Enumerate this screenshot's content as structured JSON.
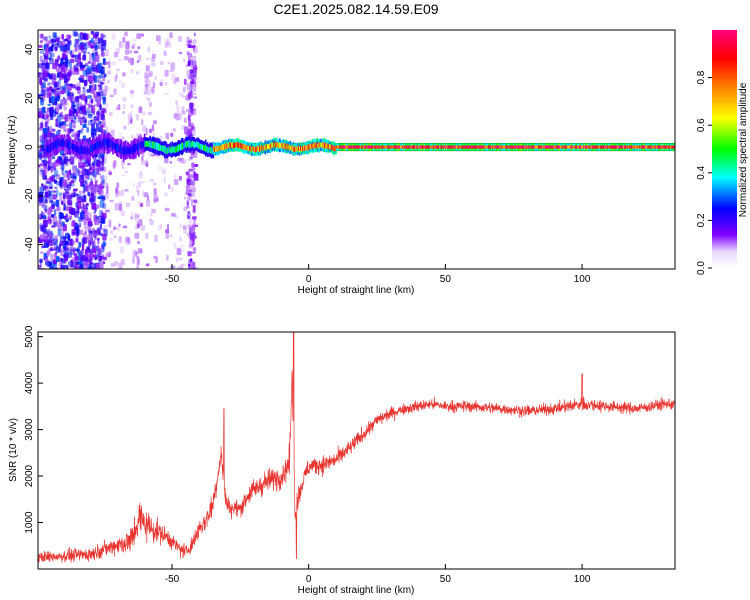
{
  "figure": {
    "title": "C2E1.2025.082.14.59.E09"
  },
  "chart_data": [
    {
      "type": "heatmap",
      "xlabel": "Height of straight line (km)",
      "ylabel": "Frequency (Hz)",
      "xlim": [
        -99,
        134
      ],
      "ylim": [
        -50,
        48
      ],
      "x_ticks": [
        -50,
        0,
        50,
        100
      ],
      "y_ticks": [
        -40,
        -20,
        0,
        20,
        40
      ],
      "grid": false,
      "colorbar": {
        "label": "Normalized spectral amplitude",
        "range": [
          0,
          1
        ],
        "ticks": [
          "0.0",
          "0.2",
          "0.4",
          "0.6",
          "0.8"
        ],
        "colormap": [
          "#ffffff",
          "#7f00ff",
          "#0000ff",
          "#00ffff",
          "#00ff00",
          "#ffff00",
          "#ff8000",
          "#ff0000",
          "#ff0080"
        ]
      },
      "band": {
        "center_hz": 0,
        "half_width_hz": 1.5,
        "segments": [
          {
            "x": [
              -96,
              -60
            ],
            "amplitude": 0.25,
            "wiggle_hz": 2
          },
          {
            "x": [
              -60,
              -35
            ],
            "amplitude": 0.45,
            "wiggle_hz": 1.5
          },
          {
            "x": [
              -35,
              10
            ],
            "amplitude": 0.8,
            "wiggle_hz": 1
          },
          {
            "x": [
              10,
              134
            ],
            "amplitude": 0.98,
            "wiggle_hz": 0
          }
        ],
        "outline_color": "#006400"
      },
      "scatter_regions": [
        {
          "x": [
            -99,
            -75
          ],
          "y": [
            -50,
            48
          ],
          "amplitude": 0.2,
          "density": "high"
        },
        {
          "x": [
            -75,
            -45
          ],
          "y": [
            -50,
            48
          ],
          "amplitude": 0.06,
          "density": "low"
        },
        {
          "x": [
            -45,
            -42
          ],
          "y": [
            -50,
            48
          ],
          "amplitude": 0.12,
          "density": "medium"
        }
      ]
    },
    {
      "type": "line",
      "xlabel": "Height of straight line (km)",
      "ylabel": "SNR (10 * v/v)",
      "xlim": [
        -99,
        134
      ],
      "ylim": [
        0,
        5100
      ],
      "x_ticks": [
        -50,
        0,
        50,
        100
      ],
      "y_ticks": [
        1000,
        2000,
        3000,
        4000,
        5000
      ],
      "grid": false,
      "series": [
        {
          "color": "#e8332e",
          "x": [
            -99,
            -90,
            -80,
            -75,
            -70,
            -65,
            -62,
            -58,
            -52,
            -48,
            -45,
            -42,
            -40,
            -38,
            -35,
            -32,
            -31,
            -30,
            -28,
            -25,
            -22,
            -20,
            -15,
            -10,
            -7,
            -6,
            -5,
            -4,
            -2,
            0,
            5,
            10,
            15,
            20,
            25,
            30,
            35,
            40,
            45,
            50,
            60,
            70,
            80,
            90,
            100,
            110,
            120,
            130,
            134
          ],
          "values": [
            250,
            280,
            320,
            420,
            520,
            600,
            1100,
            900,
            700,
            480,
            350,
            600,
            900,
            1000,
            1400,
            2500,
            1800,
            1400,
            1300,
            1300,
            1600,
            1700,
            1900,
            2000,
            2300,
            4200,
            1200,
            1500,
            1900,
            2200,
            2250,
            2350,
            2600,
            2900,
            3200,
            3350,
            3450,
            3500,
            3550,
            3500,
            3500,
            3450,
            3400,
            3450,
            3550,
            3500,
            3450,
            3550,
            3550
          ],
          "noise_amplitude": [
            200,
            220,
            250,
            260,
            300,
            550,
            700,
            500,
            300,
            250,
            300,
            300,
            350,
            400,
            450,
            500,
            400,
            300,
            300,
            300,
            350,
            400,
            400,
            450,
            500,
            500,
            400,
            400,
            350,
            350,
            320,
            300,
            280,
            260,
            240,
            220,
            200,
            200,
            200,
            200,
            200,
            200,
            200,
            200,
            250,
            200,
            200,
            200,
            200
          ],
          "spikes": [
            {
              "x": -31,
              "value": 3450
            },
            {
              "x": -5.5,
              "value": 5100
            },
            {
              "x": -4.5,
              "value": 220
            },
            {
              "x": 100,
              "value": 4200
            }
          ]
        }
      ]
    }
  ]
}
